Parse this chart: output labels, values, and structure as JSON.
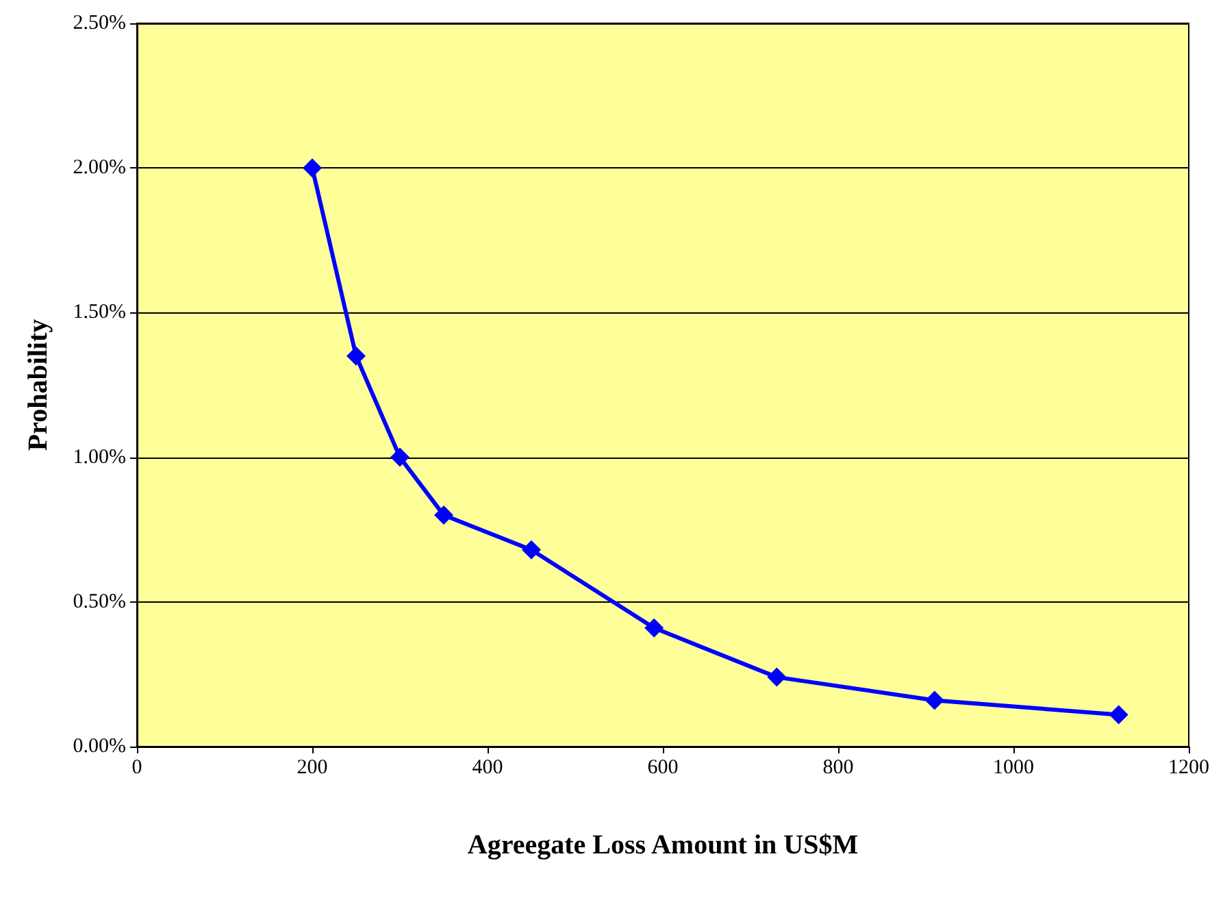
{
  "chart_data": {
    "type": "line",
    "xlabel": "Agreegate Loss Amount in US$M",
    "ylabel": "Prohability",
    "x": [
      200,
      250,
      300,
      350,
      450,
      590,
      730,
      910,
      1120
    ],
    "series": [
      {
        "color": "#0000ff",
        "values": [
          2.0,
          1.35,
          1.0,
          0.8,
          0.68,
          0.41,
          0.24,
          0.16,
          0.11
        ]
      }
    ],
    "xlim": [
      0,
      1200
    ],
    "xticks": [
      0,
      200,
      400,
      600,
      800,
      1000,
      1200
    ],
    "ylim": [
      0,
      2.5
    ],
    "yticks": [
      {
        "value": 0,
        "label": "0.00%"
      },
      {
        "value": 0.5,
        "label": "0.50%"
      },
      {
        "value": 1,
        "label": "1.00%"
      },
      {
        "value": 1.5,
        "label": "1.50%"
      },
      {
        "value": 2,
        "label": "2.00%"
      },
      {
        "value": 2.5,
        "label": "2.50%"
      }
    ],
    "grid": "y",
    "marker": "diamond",
    "line_style": "solid"
  }
}
